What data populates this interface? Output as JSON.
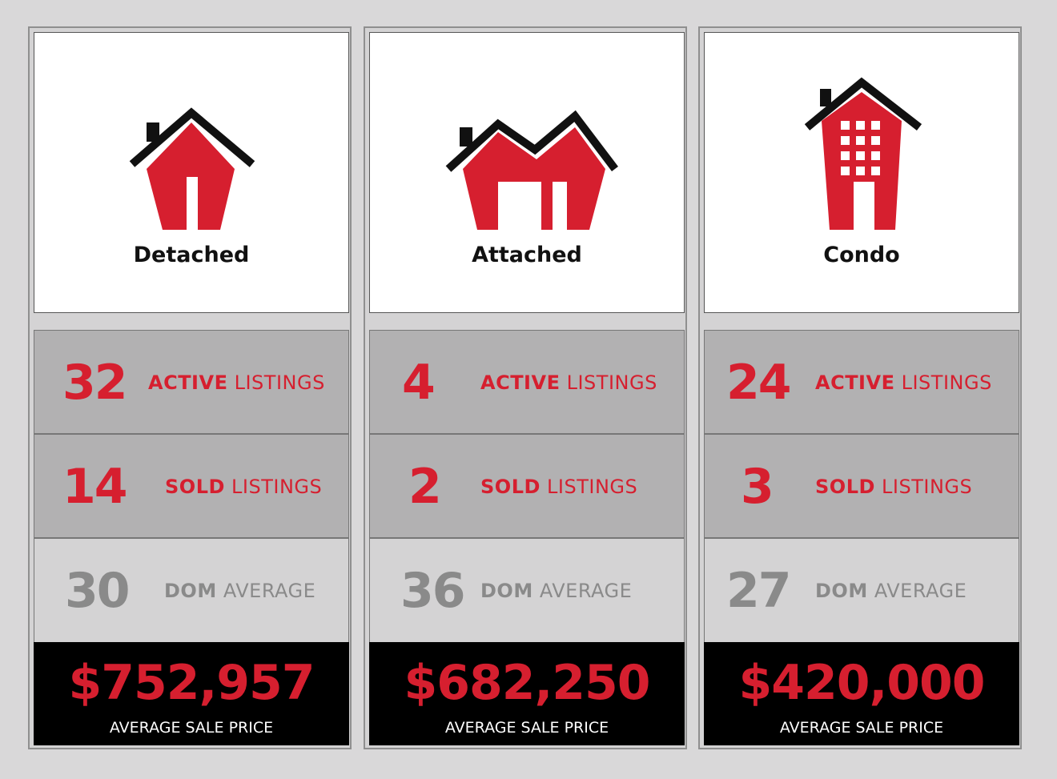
{
  "colors": {
    "accent_red": "#d61f2f",
    "muted_grey": "#8a8a8a",
    "roof_black": "#111111"
  },
  "cards": [
    {
      "type": "Detached",
      "icon": "detached-house-icon",
      "active": {
        "value": "32",
        "bold": "ACTIVE",
        "rest": " LISTINGS"
      },
      "sold": {
        "value": "14",
        "bold": "SOLD",
        "rest": " LISTINGS"
      },
      "dom": {
        "value": "30",
        "bold": "DOM",
        "rest": " AVERAGE"
      },
      "price": {
        "value": "$752,957",
        "caption": "AVERAGE SALE PRICE"
      }
    },
    {
      "type": "Attached",
      "icon": "attached-house-icon",
      "active": {
        "value": "4",
        "bold": "ACTIVE",
        "rest": " LISTINGS"
      },
      "sold": {
        "value": "2",
        "bold": "SOLD",
        "rest": " LISTINGS"
      },
      "dom": {
        "value": "36",
        "bold": "DOM",
        "rest": " AVERAGE"
      },
      "price": {
        "value": "$682,250",
        "caption": "AVERAGE SALE PRICE"
      }
    },
    {
      "type": "Condo",
      "icon": "condo-building-icon",
      "active": {
        "value": "24",
        "bold": "ACTIVE",
        "rest": " LISTINGS"
      },
      "sold": {
        "value": "3",
        "bold": "SOLD",
        "rest": " LISTINGS"
      },
      "dom": {
        "value": "27",
        "bold": "DOM",
        "rest": " AVERAGE"
      },
      "price": {
        "value": "$420,000",
        "caption": "AVERAGE SALE PRICE"
      }
    }
  ]
}
